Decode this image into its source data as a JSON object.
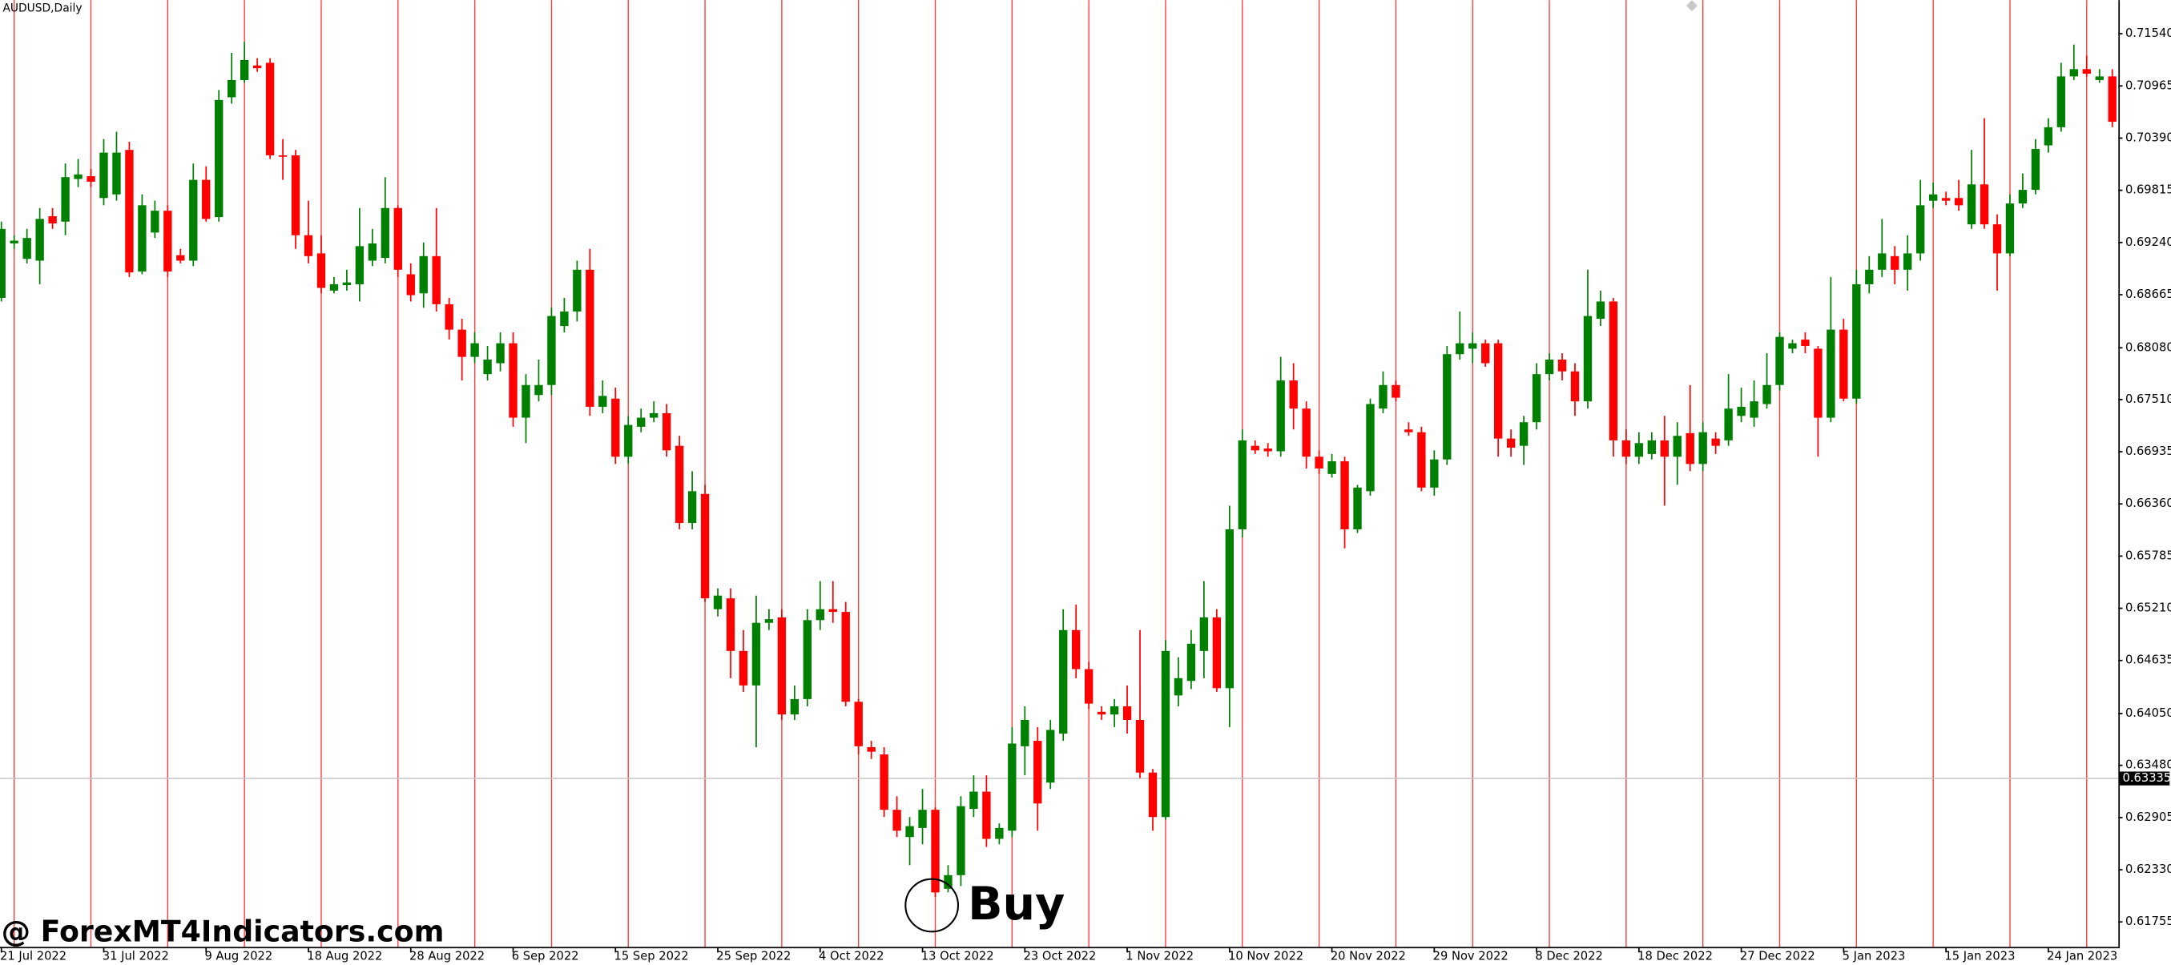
{
  "chart_data": {
    "type": "candlestick",
    "title": "AUDUSD,Daily",
    "up_color": "#008000",
    "down_color": "#ff0000",
    "separator_color": "#ff3b3b",
    "categories": [
      "21 Jul 2022",
      null,
      null,
      null,
      null,
      null,
      null,
      null,
      "31 Jul 2022",
      null,
      null,
      null,
      null,
      null,
      null,
      null,
      "9 Aug 2022",
      null,
      null,
      null,
      null,
      null,
      null,
      null,
      "18 Aug 2022",
      null,
      null,
      null,
      null,
      null,
      null,
      null,
      "28 Aug 2022",
      null,
      null,
      null,
      null,
      null,
      null,
      null,
      "6 Sep 2022",
      null,
      null,
      null,
      null,
      null,
      null,
      null,
      "15 Sep 2022",
      null,
      null,
      null,
      null,
      null,
      null,
      null,
      "25 Sep 2022",
      null,
      null,
      null,
      null,
      null,
      null,
      null,
      "4 Oct 2022",
      null,
      null,
      null,
      null,
      null,
      null,
      null,
      "13 Oct 2022",
      null,
      null,
      null,
      null,
      null,
      null,
      null,
      "23 Oct 2022",
      null,
      null,
      null,
      null,
      null,
      null,
      null,
      "1 Nov 2022",
      null,
      null,
      null,
      null,
      null,
      null,
      null,
      "10 Nov 2022",
      null,
      null,
      null,
      null,
      null,
      null,
      null,
      "20 Nov 2022",
      null,
      null,
      null,
      null,
      null,
      null,
      null,
      "29 Nov 2022",
      null,
      null,
      null,
      null,
      null,
      null,
      null,
      "8 Dec 2022",
      null,
      null,
      null,
      null,
      null,
      null,
      null,
      "18 Dec 2022",
      null,
      null,
      null,
      null,
      null,
      null,
      null,
      "27 Dec 2022",
      null,
      null,
      null,
      null,
      null,
      null,
      null,
      "5 Jan 2023",
      null,
      null,
      null,
      null,
      null,
      null,
      null,
      "15 Jan 2023",
      null,
      null,
      null,
      null,
      null,
      null,
      null,
      "24 Jan 2023",
      null,
      null,
      null,
      null,
      null
    ],
    "open": [
      0.6863,
      0.6923,
      0.6906,
      0.6904,
      0.6953,
      0.6947,
      0.6994,
      0.6997,
      0.6973,
      0.6977,
      0.7026,
      0.6892,
      0.6935,
      0.6959,
      0.691,
      0.6904,
      0.6993,
      0.6952,
      0.7084,
      0.7103,
      0.7119,
      0.7122,
      0.702,
      0.702,
      0.6932,
      0.6912,
      0.6871,
      0.6877,
      0.6878,
      0.6904,
      0.6907,
      0.6962,
      0.6889,
      0.6868,
      0.6909,
      0.6856,
      0.6828,
      0.6798,
      0.6779,
      0.6791,
      0.6813,
      0.6731,
      0.6756,
      0.6767,
      0.6832,
      0.6848,
      0.6894,
      0.6743,
      0.6752,
      0.6688,
      0.6721,
      0.6731,
      0.6736,
      0.67,
      0.6615,
      0.6647,
      0.652,
      0.6532,
      0.6474,
      0.6436,
      0.6505,
      0.6511,
      0.6404,
      0.6421,
      0.6508,
      0.652,
      0.6517,
      0.6418,
      0.6368,
      0.636,
      0.6299,
      0.6269,
      0.6279,
      0.6299,
      0.6212,
      0.6227,
      0.63,
      0.6319,
      0.6267,
      0.6276,
      0.6369,
      0.6375,
      0.6329,
      0.6383,
      0.6497,
      0.6454,
      0.6407,
      0.6404,
      0.6413,
      0.6398,
      0.634,
      0.6291,
      0.6425,
      0.6441,
      0.6474,
      0.6511,
      0.6433,
      0.6608,
      0.67,
      0.6697,
      0.6694,
      0.6772,
      0.6741,
      0.6688,
      0.6669,
      0.6683,
      0.6608,
      0.665,
      0.6741,
      0.6767,
      0.6718,
      0.6715,
      0.6654,
      0.6685,
      0.6801,
      0.6807,
      0.6813,
      0.6813,
      0.6708,
      0.67,
      0.6726,
      0.6779,
      0.6795,
      0.6782,
      0.6749,
      0.684,
      0.6859,
      0.6706,
      0.6688,
      0.6691,
      0.6706,
      0.6688,
      0.6714,
      0.668,
      0.6708,
      0.6706,
      0.6733,
      0.6731,
      0.6746,
      0.6767,
      0.6807,
      0.6817,
      0.6807,
      0.6731,
      0.6828,
      0.6752,
      0.6878,
      0.6894,
      0.6909,
      0.6894,
      0.6912,
      0.697,
      0.6973,
      0.6973,
      0.6944,
      0.6988,
      0.6944,
      0.6912,
      0.6967,
      0.6982,
      0.7031,
      0.7051,
      0.7107,
      0.7115,
      0.7103,
      0.7107
    ],
    "high": [
      0.6947,
      0.6932,
      0.6939,
      0.6962,
      0.6962,
      0.7011,
      0.7016,
      0.7005,
      0.7038,
      0.7046,
      0.7035,
      0.6977,
      0.697,
      0.6965,
      0.6917,
      0.7011,
      0.7008,
      0.7092,
      0.7133,
      0.7145,
      0.7127,
      0.7127,
      0.7038,
      0.7026,
      0.697,
      0.6932,
      0.6886,
      0.6894,
      0.6962,
      0.6939,
      0.6996,
      0.6965,
      0.6901,
      0.6924,
      0.6962,
      0.6863,
      0.684,
      0.6825,
      0.681,
      0.6825,
      0.6825,
      0.6779,
      0.6795,
      0.6852,
      0.6863,
      0.6904,
      0.6917,
      0.6772,
      0.6764,
      0.6733,
      0.6741,
      0.6749,
      0.6746,
      0.6711,
      0.6672,
      0.6657,
      0.6543,
      0.6543,
      0.6497,
      0.6535,
      0.652,
      0.652,
      0.6436,
      0.652,
      0.6551,
      0.6551,
      0.6528,
      0.6421,
      0.6375,
      0.6368,
      0.6314,
      0.6291,
      0.6322,
      0.6302,
      0.6238,
      0.6314,
      0.6337,
      0.6337,
      0.6284,
      0.639,
      0.6413,
      0.639,
      0.6398,
      0.652,
      0.6525,
      0.6462,
      0.6413,
      0.6421,
      0.6436,
      0.6497,
      0.6344,
      0.6486,
      0.6467,
      0.6497,
      0.6551,
      0.652,
      0.6634,
      0.6718,
      0.6706,
      0.6703,
      0.6798,
      0.6791,
      0.6749,
      0.6695,
      0.6691,
      0.6688,
      0.6657,
      0.6752,
      0.6782,
      0.6772,
      0.6726,
      0.6721,
      0.6695,
      0.681,
      0.6848,
      0.6825,
      0.6817,
      0.6817,
      0.6718,
      0.6733,
      0.6791,
      0.6802,
      0.6802,
      0.6791,
      0.6894,
      0.6871,
      0.6863,
      0.6718,
      0.6715,
      0.6715,
      0.6733,
      0.6726,
      0.6767,
      0.6726,
      0.6715,
      0.6779,
      0.6764,
      0.6772,
      0.6802,
      0.6825,
      0.6817,
      0.6825,
      0.681,
      0.6886,
      0.684,
      0.6894,
      0.6909,
      0.695,
      0.692,
      0.6932,
      0.6993,
      0.699,
      0.698,
      0.6993,
      0.7026,
      0.7061,
      0.6955,
      0.6977,
      0.7,
      0.7038,
      0.7061,
      0.7122,
      0.7142,
      0.713,
      0.7115,
      0.7115
    ],
    "low": [
      0.6859,
      0.6917,
      0.6901,
      0.6878,
      0.6939,
      0.6932,
      0.6985,
      0.6985,
      0.6965,
      0.697,
      0.6886,
      0.6889,
      0.6929,
      0.6886,
      0.6901,
      0.6898,
      0.6947,
      0.6947,
      0.7077,
      0.71,
      0.7112,
      0.7016,
      0.6993,
      0.6917,
      0.6901,
      0.6868,
      0.6868,
      0.6871,
      0.6859,
      0.6898,
      0.6901,
      0.6886,
      0.6859,
      0.6852,
      0.6848,
      0.6817,
      0.6772,
      0.6791,
      0.6772,
      0.6782,
      0.6721,
      0.6703,
      0.6749,
      0.6756,
      0.6825,
      0.6837,
      0.6733,
      0.6736,
      0.668,
      0.668,
      0.6715,
      0.6726,
      0.6688,
      0.6608,
      0.6608,
      0.6528,
      0.6512,
      0.6444,
      0.6429,
      0.6368,
      0.6497,
      0.6398,
      0.6398,
      0.6413,
      0.6497,
      0.6505,
      0.6413,
      0.636,
      0.6355,
      0.6291,
      0.6269,
      0.6238,
      0.6261,
      0.6203,
      0.6208,
      0.6215,
      0.6291,
      0.6258,
      0.6261,
      0.6269,
      0.6337,
      0.6276,
      0.6322,
      0.6375,
      0.6444,
      0.641,
      0.6398,
      0.639,
      0.6383,
      0.6334,
      0.6276,
      0.6288,
      0.6413,
      0.6432,
      0.6444,
      0.6429,
      0.639,
      0.6599,
      0.6691,
      0.6688,
      0.6688,
      0.6718,
      0.6675,
      0.6669,
      0.6665,
      0.6587,
      0.6604,
      0.6645,
      0.6736,
      0.6749,
      0.6711,
      0.665,
      0.6645,
      0.6679,
      0.6795,
      0.6791,
      0.6787,
      0.6688,
      0.6688,
      0.6679,
      0.6718,
      0.6772,
      0.6772,
      0.6733,
      0.6741,
      0.6832,
      0.6688,
      0.668,
      0.668,
      0.6685,
      0.6634,
      0.6657,
      0.6672,
      0.6672,
      0.6691,
      0.67,
      0.6726,
      0.6721,
      0.6741,
      0.6761,
      0.6802,
      0.6802,
      0.6688,
      0.6726,
      0.6749,
      0.6746,
      0.6868,
      0.6886,
      0.6878,
      0.6871,
      0.6904,
      0.6962,
      0.6965,
      0.6959,
      0.6939,
      0.6939,
      0.6871,
      0.6909,
      0.6962,
      0.6977,
      0.7023,
      0.7046,
      0.7103,
      0.7107,
      0.71,
      0.7051
    ],
    "close": [
      0.6939,
      0.6926,
      0.6929,
      0.695,
      0.6945,
      0.6996,
      0.6999,
      0.6991,
      0.7023,
      0.7023,
      0.6891,
      0.6965,
      0.6959,
      0.6892,
      0.6904,
      0.6993,
      0.695,
      0.7081,
      0.7103,
      0.7125,
      0.7116,
      0.702,
      0.7019,
      0.6932,
      0.6909,
      0.6874,
      0.6878,
      0.688,
      0.692,
      0.6923,
      0.6962,
      0.6894,
      0.6866,
      0.6909,
      0.6856,
      0.6828,
      0.6798,
      0.6813,
      0.6795,
      0.6813,
      0.6731,
      0.6767,
      0.6767,
      0.6843,
      0.6848,
      0.6894,
      0.6743,
      0.6755,
      0.6688,
      0.6723,
      0.6731,
      0.6736,
      0.6695,
      0.6615,
      0.665,
      0.6532,
      0.6535,
      0.6474,
      0.6436,
      0.6505,
      0.6509,
      0.6404,
      0.6421,
      0.6508,
      0.652,
      0.6517,
      0.6418,
      0.6369,
      0.6363,
      0.6299,
      0.6276,
      0.6281,
      0.6299,
      0.6208,
      0.6227,
      0.6303,
      0.6319,
      0.6267,
      0.6279,
      0.6372,
      0.6398,
      0.6306,
      0.6387,
      0.6497,
      0.6454,
      0.6416,
      0.6404,
      0.6413,
      0.6398,
      0.634,
      0.6291,
      0.6474,
      0.6444,
      0.6482,
      0.6511,
      0.6433,
      0.6608,
      0.6706,
      0.6695,
      0.6694,
      0.6772,
      0.6741,
      0.6688,
      0.6675,
      0.6683,
      0.6608,
      0.6654,
      0.6746,
      0.6767,
      0.6753,
      0.6715,
      0.6654,
      0.6685,
      0.6801,
      0.6813,
      0.6813,
      0.6791,
      0.6708,
      0.6698,
      0.6726,
      0.6779,
      0.6795,
      0.6782,
      0.6749,
      0.6843,
      0.6859,
      0.6706,
      0.6688,
      0.6703,
      0.6706,
      0.6688,
      0.6711,
      0.668,
      0.6715,
      0.67,
      0.6741,
      0.6743,
      0.6749,
      0.6767,
      0.682,
      0.6813,
      0.681,
      0.6731,
      0.6828,
      0.6752,
      0.6878,
      0.6894,
      0.6912,
      0.6894,
      0.6912,
      0.6965,
      0.6977,
      0.697,
      0.6965,
      0.6988,
      0.6944,
      0.6912,
      0.6967,
      0.6982,
      0.7027,
      0.7051,
      0.7107,
      0.7115,
      0.711,
      0.7107,
      0.7057
    ],
    "ylim": [
      0.6148,
      0.7191
    ],
    "yticks": [
      {
        "value": 0.7154,
        "label": "0.71540"
      },
      0.70965,
      {
        "value": 0.7039,
        "label": "0.70390"
      },
      0.69815,
      {
        "value": 0.6924,
        "label": "0.69240"
      },
      0.68665,
      {
        "value": 0.6808,
        "label": "0.68080"
      },
      {
        "value": 0.6751,
        "label": "0.67510"
      },
      0.66935,
      {
        "value": 0.6636,
        "label": "0.66360"
      },
      0.65785,
      {
        "value": 0.6521,
        "label": "0.65210"
      },
      0.64635,
      {
        "value": 0.6405,
        "label": "0.64050"
      },
      {
        "value": 0.6348,
        "label": "0.63480"
      },
      0.62905,
      {
        "value": 0.6233,
        "label": "0.62330"
      },
      0.61755
    ],
    "current_price": 0.63335,
    "annotation": "Buy",
    "watermark": "@ ForexMT4Indicators.com"
  }
}
